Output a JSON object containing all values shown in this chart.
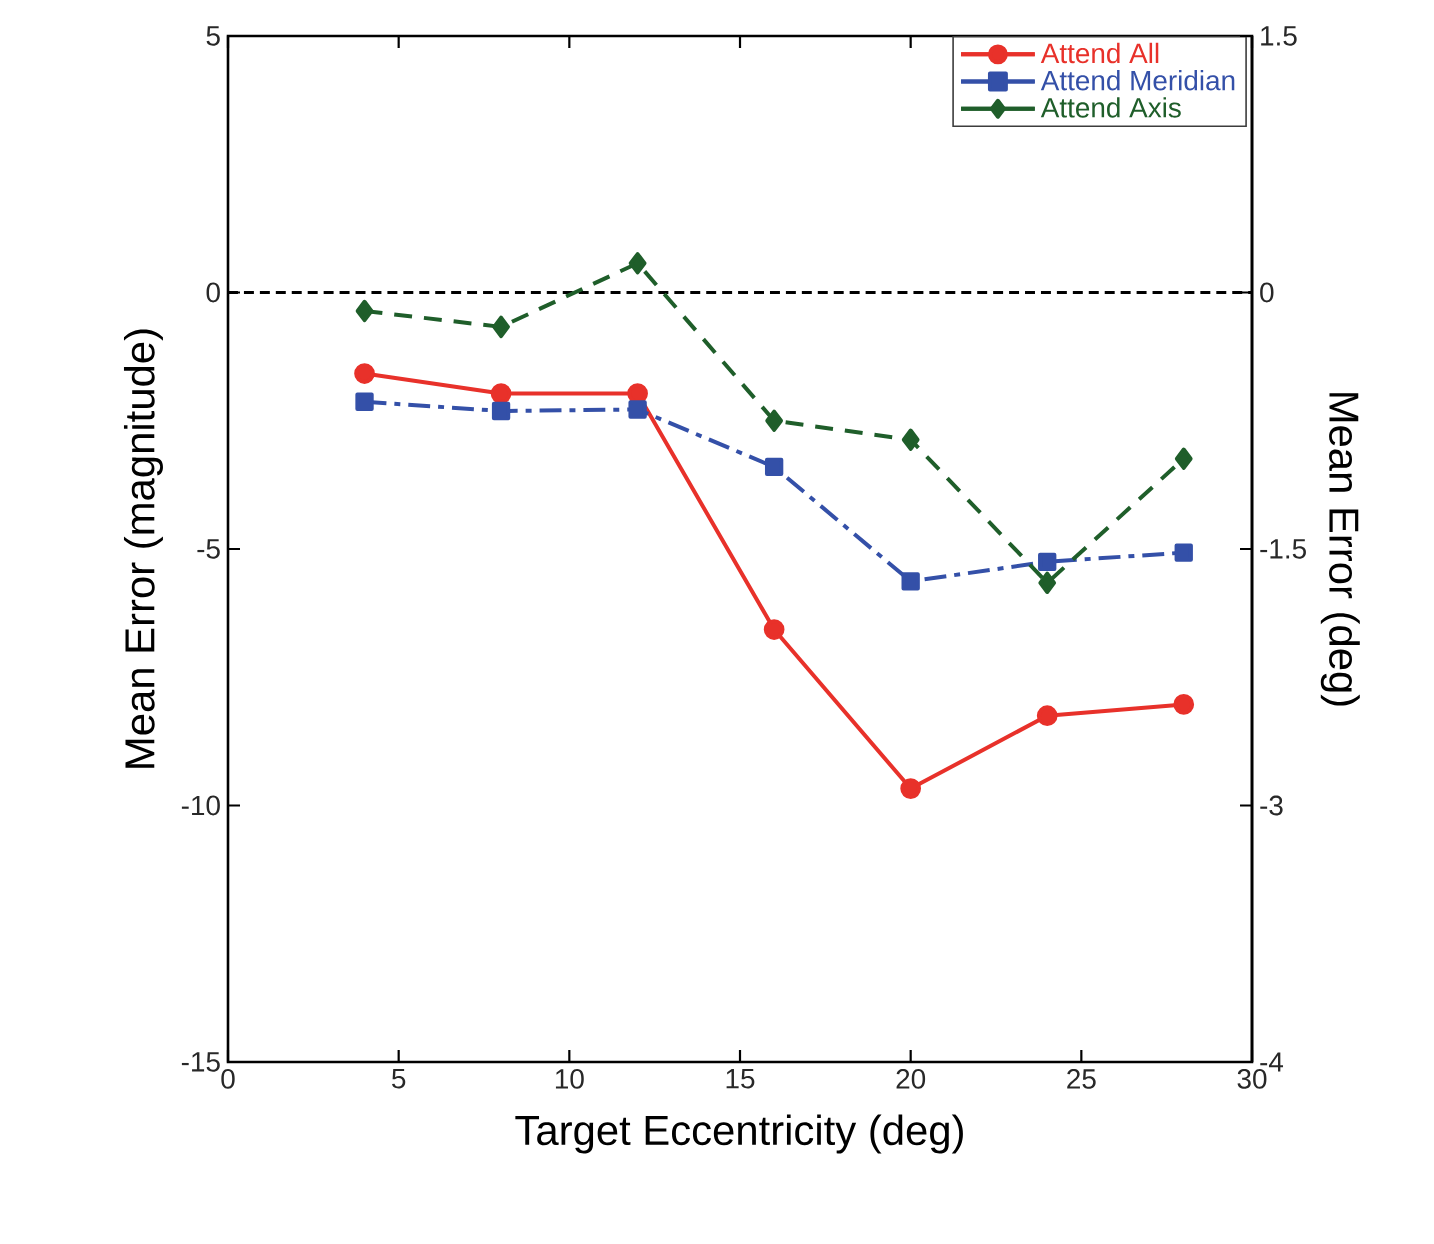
{
  "chart_data": {
    "type": "line",
    "x": [
      4,
      8,
      12,
      16,
      20,
      24,
      28
    ],
    "series": [
      {
        "name": "Attend All",
        "color": "#e8312a",
        "marker": "circle",
        "line_style": "solid",
        "values": [
          -1.58,
          -1.97,
          -1.97,
          -6.57,
          -9.67,
          -8.25,
          -8.03
        ]
      },
      {
        "name": "Attend Meridian",
        "color": "#3450a8",
        "marker": "square",
        "line_style": "dashdot",
        "values": [
          -2.13,
          -2.31,
          -2.28,
          -3.4,
          -5.63,
          -5.25,
          -5.07
        ]
      },
      {
        "name": "Attend Axis",
        "color": "#1f5e2a",
        "marker": "diamond",
        "line_style": "dashed",
        "values": [
          -0.36,
          -0.67,
          0.57,
          -2.5,
          -2.87,
          -5.66,
          -3.24
        ]
      }
    ],
    "xlabel": "Target Eccentricity (deg)",
    "ylabel": "Mean Error (magnitude)",
    "y2label": "Mean Error (deg)",
    "xlim": [
      0,
      30
    ],
    "xticks": [
      0,
      5,
      10,
      15,
      20,
      25,
      30
    ],
    "ylim": [
      -15,
      5
    ],
    "yticks": [
      -15,
      -10,
      -5,
      0,
      5
    ],
    "y2lim": [
      -4.5,
      1.5
    ],
    "y2ticks": [
      {
        "value": -4.5,
        "label": "-4"
      },
      -3,
      -1.5,
      0,
      1.5
    ],
    "ref_lines": [
      {
        "axis": "y",
        "value": 0,
        "color": "#000000",
        "line_style": "dashed"
      }
    ],
    "legend": "top right",
    "grid": false
  }
}
